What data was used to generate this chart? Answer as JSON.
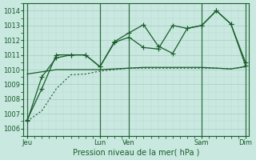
{
  "bg_color": "#c8e8e0",
  "grid_major_color": "#a8ccc4",
  "grid_minor_color": "#b8d8d0",
  "line_color": "#1a5c2a",
  "xlabel": "Pression niveau de la mer( hPa )",
  "ylim": [
    1005.5,
    1014.5
  ],
  "yticks": [
    1006,
    1007,
    1008,
    1009,
    1010,
    1011,
    1012,
    1013,
    1014
  ],
  "xtick_labels": [
    "Jeu",
    "",
    "",
    "Lun",
    "Ven",
    "",
    "",
    "Sam",
    "",
    "Dim"
  ],
  "xtick_positions": [
    0,
    3,
    6,
    10,
    14,
    17,
    20,
    24,
    27,
    30
  ],
  "xlim": [
    -0.5,
    30.5
  ],
  "vline_positions": [
    0,
    10,
    14,
    24,
    30
  ],
  "line_jagged1_x": [
    0,
    2,
    4,
    6,
    8,
    10,
    12,
    14,
    16,
    18,
    20,
    22,
    24,
    26,
    28,
    30
  ],
  "line_jagged1_y": [
    1006.5,
    1009.5,
    1010.8,
    1011.0,
    1011.0,
    1010.2,
    1011.9,
    1012.5,
    1013.05,
    1011.6,
    1011.1,
    1012.8,
    1013.0,
    1014.0,
    1013.1,
    1010.5
  ],
  "line_jagged2_x": [
    0,
    2,
    4,
    6,
    8,
    10,
    12,
    14,
    16,
    18,
    20,
    22,
    24,
    26,
    28,
    30
  ],
  "line_jagged2_y": [
    1006.6,
    1008.7,
    1011.0,
    1011.0,
    1011.0,
    1010.2,
    1011.85,
    1012.2,
    1011.5,
    1011.4,
    1013.0,
    1012.8,
    1013.0,
    1014.0,
    1013.1,
    1010.3
  ],
  "line_flat_solid_x": [
    0,
    2,
    4,
    6,
    8,
    10,
    12,
    14,
    16,
    18,
    20,
    22,
    24,
    26,
    28,
    30
  ],
  "line_flat_solid_y": [
    1009.7,
    1009.85,
    1010.0,
    1010.0,
    1010.0,
    1010.0,
    1010.05,
    1010.1,
    1010.15,
    1010.15,
    1010.15,
    1010.15,
    1010.15,
    1010.1,
    1010.05,
    1010.2
  ],
  "line_dotted_x": [
    0,
    2,
    4,
    6,
    8,
    10,
    12,
    14,
    16,
    18,
    20,
    22,
    24,
    26,
    28,
    30
  ],
  "line_dotted_y": [
    1006.5,
    1007.2,
    1008.7,
    1009.65,
    1009.7,
    1009.9,
    1010.0,
    1010.1,
    1010.1,
    1010.1,
    1010.1,
    1010.1,
    1010.1,
    1010.1,
    1010.05,
    1010.2
  ]
}
